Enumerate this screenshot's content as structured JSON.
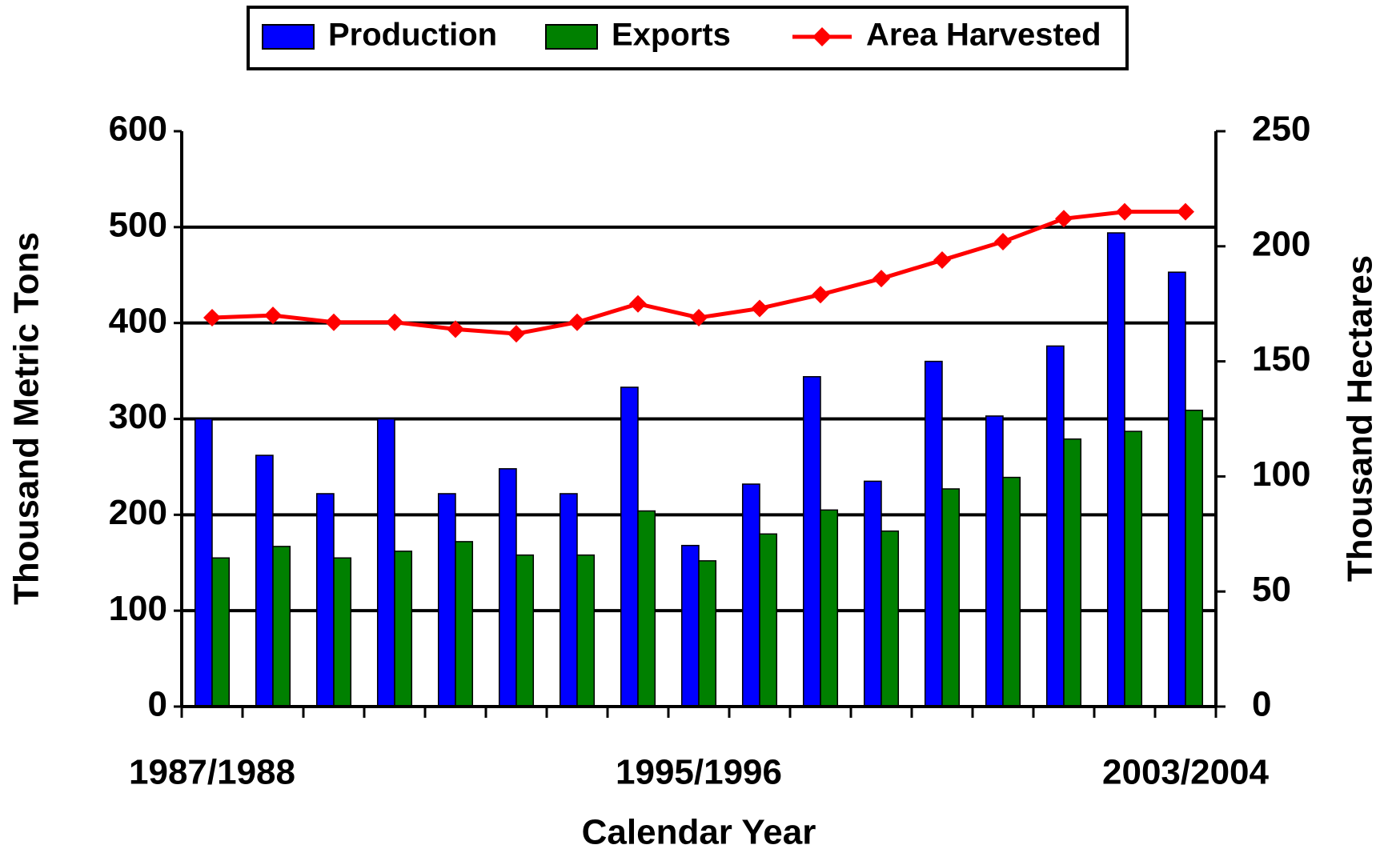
{
  "chart_data": {
    "type": "bar",
    "x_label": "Calendar Year",
    "y_label": "Thousand Metric Tons",
    "y2_label": "Thousand Hectares",
    "categories": [
      "1987/1988",
      null,
      null,
      null,
      null,
      null,
      null,
      null,
      "1995/1996",
      null,
      null,
      null,
      null,
      null,
      null,
      null,
      "2003/2004"
    ],
    "series": [
      {
        "name": "Production",
        "type": "bar",
        "color": "#0000ff",
        "values": [
          300,
          262,
          222,
          300,
          222,
          248,
          222,
          333,
          168,
          232,
          344,
          235,
          360,
          303,
          376,
          494,
          453
        ]
      },
      {
        "name": "Exports",
        "type": "bar",
        "color": "#008000",
        "values": [
          155,
          167,
          155,
          162,
          172,
          158,
          158,
          204,
          152,
          180,
          205,
          183,
          227,
          239,
          279,
          287,
          309
        ]
      },
      {
        "name": "Area Harvested",
        "type": "line",
        "axis": "y2",
        "color": "#ff0000",
        "values": [
          169,
          170,
          167,
          167,
          164,
          162,
          167,
          175,
          169,
          173,
          179,
          186,
          194,
          202,
          212,
          215,
          215
        ]
      }
    ],
    "ylim": [
      0,
      600
    ],
    "yticks": [
      0,
      100,
      200,
      300,
      400,
      500,
      600
    ],
    "y2lim": [
      0,
      250
    ],
    "y2ticks": [
      0,
      50,
      100,
      150,
      200,
      250
    ],
    "grid": true,
    "legend": "top"
  }
}
